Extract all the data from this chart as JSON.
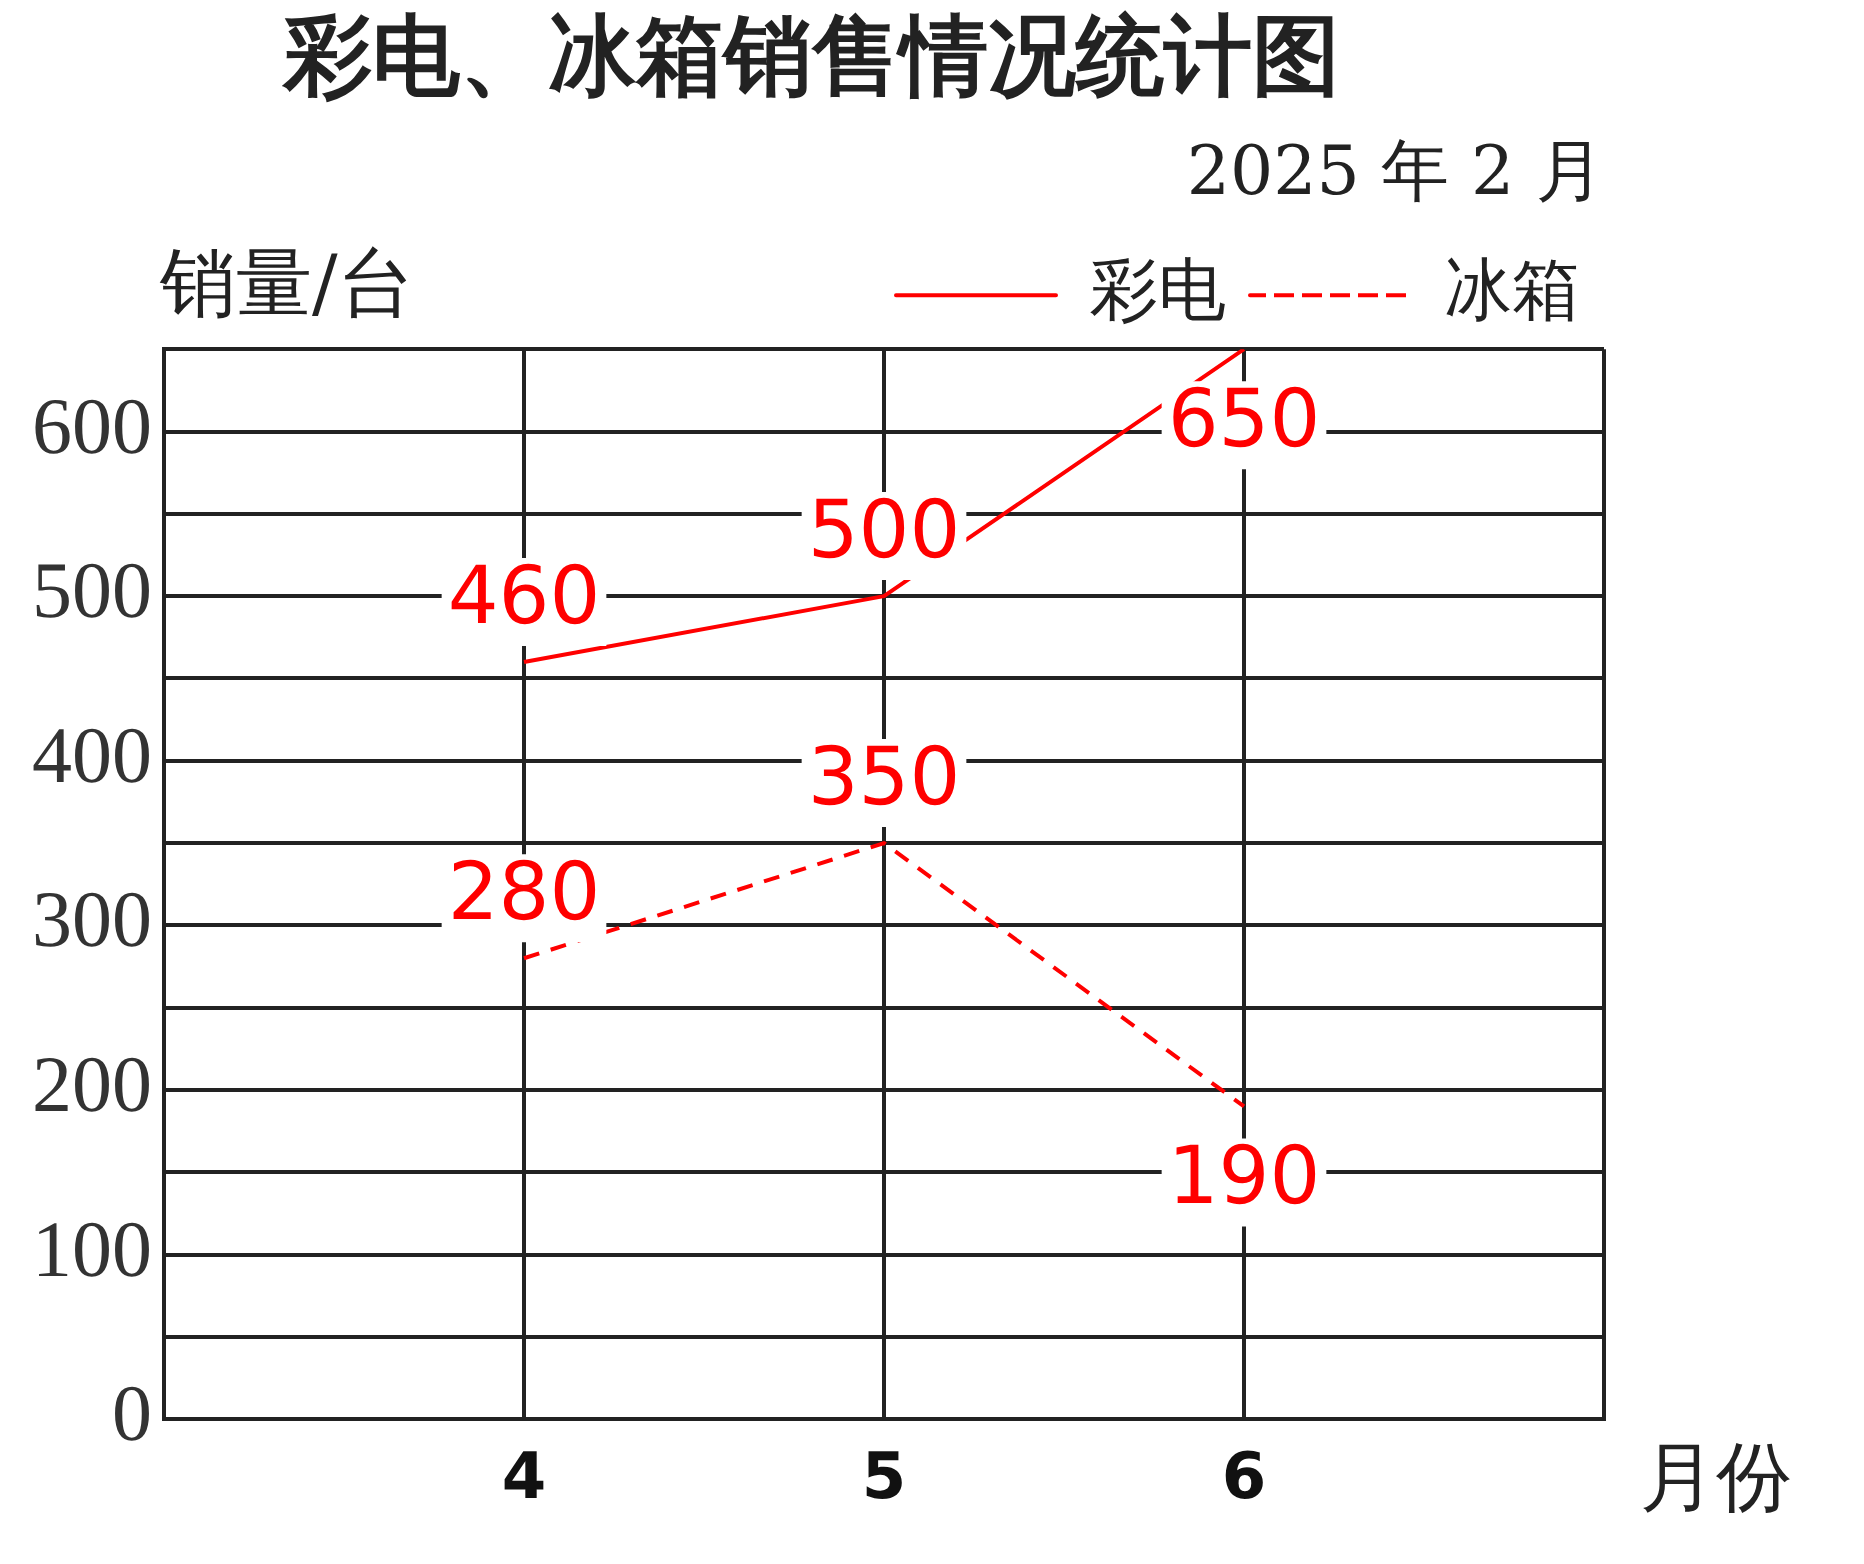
{
  "chart_data": {
    "type": "line",
    "title": "彩电、冰箱销售情况统计图",
    "subtitle": "2025 年 2 月",
    "ylabel": "销量/台",
    "xlabel": "月份",
    "x": [
      4,
      5,
      6
    ],
    "series": [
      {
        "name": "彩电",
        "color": "#ff0000",
        "values": [
          460,
          500,
          650
        ],
        "line_style": "solid"
      },
      {
        "name": "冰箱",
        "color": "#ff0000",
        "values": [
          280,
          350,
          190
        ],
        "line_style": "dashed"
      }
    ],
    "xlim": [
      3,
      7
    ],
    "xticks": [
      {
        "value": 3,
        "label": null
      },
      4,
      5,
      6,
      {
        "value": 7,
        "label": null
      }
    ],
    "ylim": [
      0,
      650
    ],
    "yticks": [
      0,
      {
        "value": 50,
        "label": null
      },
      100,
      {
        "value": 150,
        "label": null
      },
      200,
      {
        "value": 250,
        "label": null
      },
      300,
      {
        "value": 350,
        "label": null
      },
      400,
      {
        "value": 450,
        "label": null
      },
      500,
      {
        "value": 550,
        "label": null
      },
      600,
      {
        "value": 650,
        "label": null
      }
    ],
    "grid": true,
    "legend": "top right",
    "marker": "none",
    "data_labels": true
  }
}
